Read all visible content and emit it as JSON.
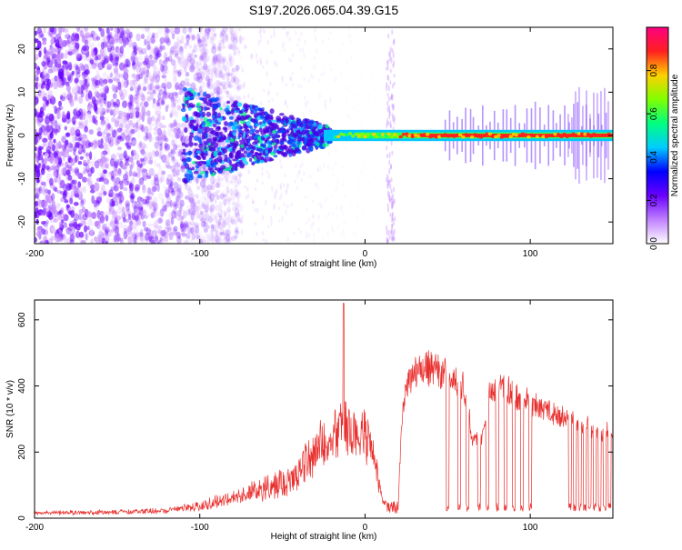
{
  "title": "S197.2026.065.04.39.G15",
  "colors": {
    "snr_line": "#e8302e",
    "axis": "#000000",
    "spectrogram_background": "#ffffff"
  },
  "chart_data": [
    {
      "type": "heatmap",
      "name": "spectrogram",
      "xlabel": "Height of straight line (km)",
      "ylabel": "Frequency (Hz)",
      "xlim": [
        -200,
        150
      ],
      "ylim": [
        -25,
        25
      ],
      "x_ticks": [
        -200,
        -100,
        0,
        100
      ],
      "y_ticks": [
        -20,
        -10,
        0,
        10,
        20
      ],
      "colorbar": {
        "label": "Normalized spectral amplitude",
        "range": [
          0,
          1
        ],
        "ticks": [
          "0.0",
          "0.2",
          "0.4",
          "0.6",
          "0.8"
        ],
        "colormap": [
          "#ffffff",
          "#c080ff",
          "#6a00ff",
          "#0000ff",
          "#00ccff",
          "#00ff80",
          "#80ff00",
          "#ffd000",
          "#ff2020",
          "#ff0080"
        ]
      },
      "features": {
        "diffuse_noise_extent_km": [
          -200,
          -100
        ],
        "broadband_scatter_km": [
          -110,
          -20
        ],
        "carrier_line_hz": 0,
        "carrier_strong_km": [
          -25,
          150
        ],
        "vertical_artifacts_km": [
          13,
          18
        ]
      }
    },
    {
      "type": "line",
      "name": "snr",
      "xlabel": "Height of straight line (km)",
      "ylabel": "SNR (10 * v/v)",
      "xlim": [
        -200,
        150
      ],
      "ylim": [
        0,
        660
      ],
      "x_ticks": [
        -200,
        -100,
        0,
        100
      ],
      "y_ticks": [
        0,
        200,
        400,
        600
      ],
      "series": [
        {
          "name": "SNR",
          "envelope_x_km": [
            -200,
            -150,
            -120,
            -100,
            -80,
            -60,
            -50,
            -40,
            -30,
            -20,
            -15,
            -10,
            -5,
            0,
            5,
            10,
            15,
            20,
            22,
            25,
            30,
            35,
            40,
            45,
            50,
            55,
            60,
            65,
            70,
            75,
            80,
            85,
            90,
            95,
            100,
            110,
            120,
            130,
            140,
            150
          ],
          "envelope_y": [
            20,
            22,
            28,
            45,
            75,
            110,
            130,
            170,
            250,
            300,
            320,
            310,
            300,
            300,
            240,
            70,
            20,
            25,
            300,
            430,
            470,
            485,
            480,
            470,
            455,
            440,
            420,
            260,
            240,
            390,
            430,
            420,
            395,
            380,
            370,
            345,
            325,
            300,
            285,
            270
          ],
          "peak_spike": {
            "x_km": -13,
            "y": 650
          },
          "dropouts_x_km": [
            50,
            57,
            62,
            69,
            74,
            80,
            85,
            90,
            95,
            100,
            124,
            127,
            130,
            133,
            136,
            139,
            142,
            145,
            148
          ],
          "dropout_y": 20
        }
      ]
    }
  ]
}
